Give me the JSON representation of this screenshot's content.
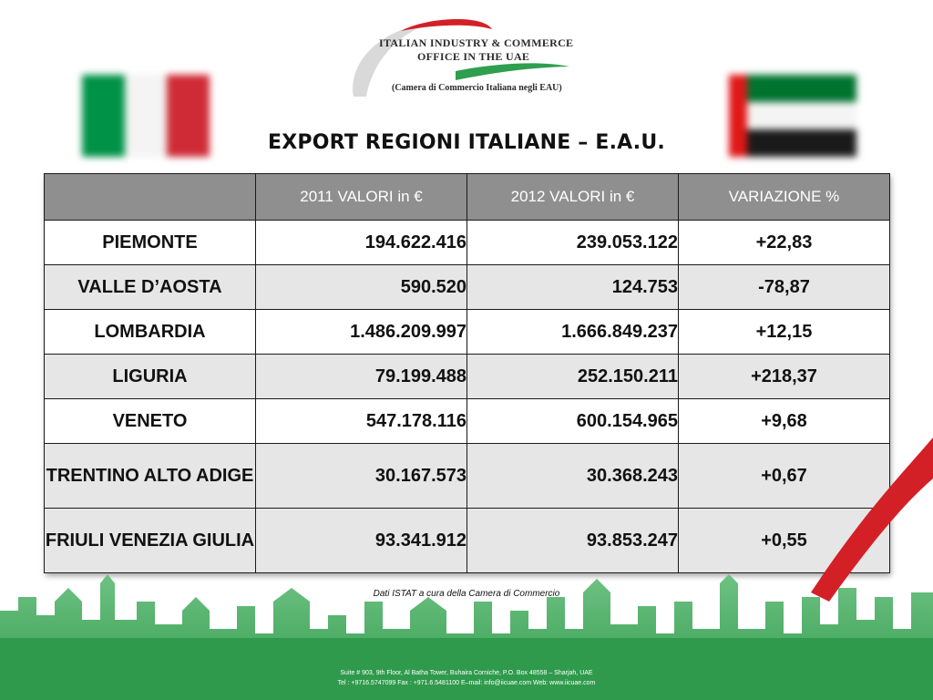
{
  "logo": {
    "line1": "ITALIAN INDUSTRY & COMMERCE",
    "line2": "OFFICE IN THE UAE",
    "line3": "(Camera di Commercio Italiana negli EAU)"
  },
  "flags": {
    "left": {
      "name": "italy-flag",
      "colors": [
        "#009246",
        "#ffffff",
        "#ce2b37"
      ]
    },
    "right": {
      "name": "uae-flag",
      "colors": [
        "#00732f",
        "#ffffff",
        "#000000",
        "#ff0000"
      ]
    }
  },
  "title": "EXPORT REGIONI ITALIANE – E.A.U.",
  "table": {
    "headers": [
      "",
      "2011 VALORI in €",
      "2012 VALORI in €",
      "VARIAZIONE %"
    ],
    "rows": [
      {
        "region": "PIEMONTE",
        "v2011": "194.622.416",
        "v2012": "239.053.122",
        "variation": "+22,83"
      },
      {
        "region": "VALLE D’AOSTA",
        "v2011": "590.520",
        "v2012": "124.753",
        "variation": "-78,87"
      },
      {
        "region": "LOMBARDIA",
        "v2011": "1.486.209.997",
        "v2012": "1.666.849.237",
        "variation": "+12,15"
      },
      {
        "region": "LIGURIA",
        "v2011": "79.199.488",
        "v2012": "252.150.211",
        "variation": "+218,37"
      },
      {
        "region": "VENETO",
        "v2011": "547.178.116",
        "v2012": "600.154.965",
        "variation": "+9,68"
      },
      {
        "region": "TRENTINO ALTO ADIGE",
        "v2011": "30.167.573",
        "v2012": "30.368.243",
        "variation": "+0,67"
      },
      {
        "region": "FRIULI VENEZIA GIULIA",
        "v2011": "93.341.912",
        "v2012": "93.853.247",
        "variation": "+0,55"
      }
    ]
  },
  "source_note": "Dati ISTAT a cura della Camera di Commercio",
  "footer": {
    "line1": "Suite # 903, 9th Floor, Al Batha Tower, Buhaira Corniche, P.O. Box 48558 – Sharjah, UAE",
    "line2": "Tel : +9716.5747099  Fax : +971.6.5481100  E–mail: info@iicuae.com  Web: www.iicuae.com"
  },
  "colors": {
    "header_bg": "#8f8f8f",
    "row_alt": "#e6e6e6",
    "skyline_green": "#3aa857",
    "accent_red": "#d32027"
  }
}
